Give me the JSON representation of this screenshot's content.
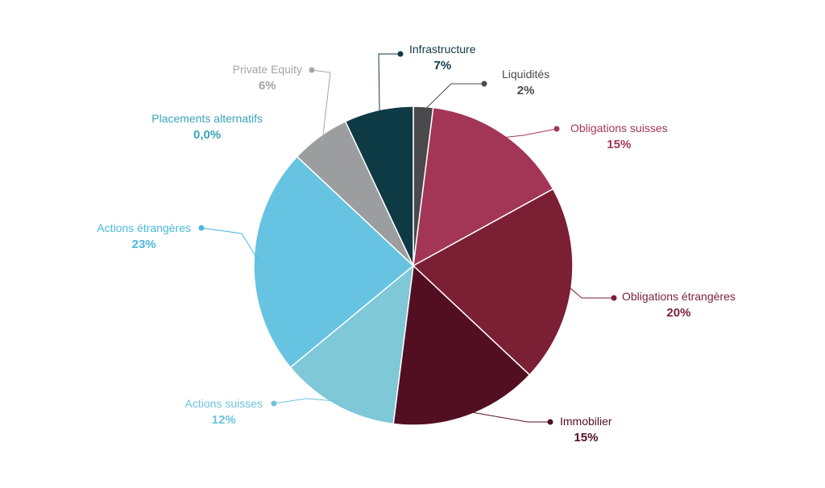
{
  "chart_data": {
    "type": "pie",
    "slices": [
      {
        "key": "liquidites",
        "name": "Liquidités",
        "value": 2,
        "label": "2%",
        "color": "#4a4a4c",
        "label_color": "#4a4a4c"
      },
      {
        "key": "obligations-suisses",
        "name": "Obligations suisses",
        "value": 15,
        "label": "15%",
        "color": "#a33656",
        "label_color": "#a33656"
      },
      {
        "key": "obligations-etrangeres",
        "name": "Obligations étrangères",
        "value": 20,
        "label": "20%",
        "color": "#7b1f35",
        "label_color": "#7b1f35"
      },
      {
        "key": "immobilier",
        "name": "Immobilier",
        "value": 15,
        "label": "15%",
        "color": "#530f22",
        "label_color": "#530f22"
      },
      {
        "key": "actions-suisses",
        "name": "Actions suisses",
        "value": 12,
        "label": "12%",
        "color": "#7ec8d8",
        "label_color": "#6cc3dd"
      },
      {
        "key": "actions-etrangeres",
        "name": "Actions étrangères",
        "value": 23,
        "label": "23%",
        "color": "#66c3e2",
        "label_color": "#4bb8df"
      },
      {
        "key": "placements-alternatifs",
        "name": "Placements alternatifs",
        "value": 0,
        "label": "0,0%",
        "color": "#39a3bd",
        "label_color": "#39a3bd"
      },
      {
        "key": "private-equity",
        "name": "Private Equity",
        "value": 6,
        "label": "6%",
        "color": "#9b9d9f",
        "label_color": "#a3a5a7"
      },
      {
        "key": "infrastructure",
        "name": "Infrastructure",
        "value": 7,
        "label": "7%",
        "color": "#0e3a45",
        "label_color": "#0e3a45"
      }
    ]
  }
}
